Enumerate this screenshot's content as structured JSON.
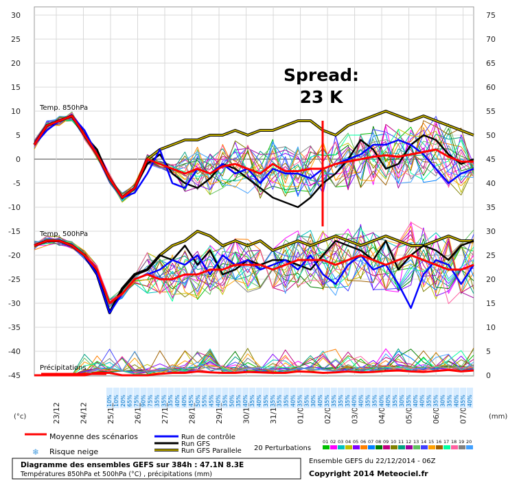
{
  "chart_data": {
    "type": "line",
    "x_dates": [
      "23/12",
      "24/12",
      "25/12",
      "26/12",
      "27/12",
      "28/12",
      "29/12",
      "30/12",
      "31/12",
      "01/01",
      "02/01",
      "03/01",
      "04/01",
      "05/01",
      "06/01",
      "07/01"
    ],
    "y_left": {
      "unit": "(°c)",
      "ticks": [
        30,
        25,
        20,
        15,
        10,
        5,
        0,
        -5,
        -10,
        -15,
        -20,
        -25,
        -30,
        -35,
        -40,
        -45
      ],
      "range": [
        -45,
        30
      ]
    },
    "y_right": {
      "unit": "(mm)",
      "ticks": [
        75,
        70,
        65,
        60,
        55,
        50,
        45,
        40,
        35,
        30,
        25,
        20,
        15,
        10,
        5,
        0
      ],
      "range": [
        0,
        75
      ]
    },
    "panel_labels": {
      "t850": "Temp. 850hPa",
      "t500": "Temp. 500hPa",
      "precip": "Précipitations"
    },
    "annotation": {
      "line1": "Spread:",
      "line2": "23 K",
      "date": "02/01"
    },
    "mean_850": [
      3,
      7,
      8,
      9,
      5,
      1,
      -4,
      -8,
      -6,
      0,
      -1,
      -2,
      -3,
      -2,
      -3,
      -1.5,
      -1,
      -2,
      -3,
      -1,
      -2.5,
      -2.5,
      -2,
      -2,
      -1,
      -0.5,
      0,
      0.5,
      0.8,
      0.5,
      1,
      1.5,
      2,
      0.5,
      -0.5,
      -0.5
    ],
    "control_850": [
      3,
      6,
      8,
      9,
      6,
      1,
      -4,
      -8,
      -7,
      -3,
      2,
      -5,
      -6,
      -2,
      -3,
      -1,
      -3,
      -2,
      -5,
      -2,
      -3,
      -3,
      -4,
      -2,
      -1,
      0,
      1,
      3,
      3,
      4,
      3,
      1,
      -2,
      -5,
      -3,
      -2
    ],
    "gfs_850": [
      3,
      7,
      8,
      9,
      5,
      2,
      -4,
      -8,
      -6,
      -1,
      1,
      -3,
      -5,
      -6,
      -4,
      -1,
      -2,
      -4,
      -6,
      -8,
      -9,
      -10,
      -8,
      -5,
      -3,
      0,
      4,
      2,
      -2,
      -1,
      3,
      5,
      4,
      1,
      -1,
      0
    ],
    "para_850": [
      3,
      7,
      8,
      9,
      5,
      1,
      -4,
      -8,
      -6,
      0,
      2,
      3,
      4,
      4,
      5,
      5,
      6,
      5,
      6,
      6,
      7,
      8,
      8,
      6,
      5,
      7,
      8,
      9,
      10,
      9,
      8,
      9,
      8,
      7,
      6,
      5
    ],
    "mean_500": [
      -18,
      -17,
      -17,
      -18,
      -20,
      -23,
      -30,
      -28,
      -25,
      -24,
      -25,
      -25,
      -24,
      -24,
      -23,
      -23,
      -22,
      -22,
      -22,
      -23,
      -22,
      -21,
      -21,
      -21,
      -22,
      -21,
      -20,
      -21,
      -22,
      -21,
      -20,
      -21,
      -22,
      -23,
      -23,
      -22
    ],
    "control_500": [
      -18,
      -17,
      -17,
      -18,
      -20,
      -24,
      -32,
      -28,
      -25,
      -24,
      -23,
      -21,
      -22,
      -20,
      -24,
      -20,
      -22,
      -21,
      -23,
      -22,
      -21,
      -23,
      -20,
      -24,
      -26,
      -22,
      -20,
      -23,
      -22,
      -26,
      -31,
      -24,
      -21,
      -22,
      -26,
      -22
    ],
    "gfs_500": [
      -18,
      -17,
      -17,
      -18,
      -20,
      -24,
      -32,
      -27,
      -24,
      -23,
      -20,
      -21,
      -18,
      -22,
      -19,
      -24,
      -23,
      -21,
      -22,
      -21,
      -21,
      -22,
      -23,
      -20,
      -17,
      -18,
      -19,
      -21,
      -17,
      -23,
      -20,
      -18,
      -19,
      -21,
      -18,
      -17
    ],
    "para_500": [
      -18,
      -17,
      -17,
      -18,
      -20,
      -24,
      -32,
      -27,
      -24,
      -23,
      -20,
      -18,
      -17,
      -15,
      -16,
      -18,
      -17,
      -18,
      -17,
      -19,
      -18,
      -17,
      -18,
      -17,
      -16,
      -17,
      -18,
      -17,
      -16,
      -17,
      -18,
      -18,
      -17,
      -16,
      -17,
      -17
    ],
    "mean_precip": [
      0,
      0,
      0,
      0,
      0,
      0.5,
      0.5,
      0,
      0,
      0,
      0.3,
      0.5,
      0.5,
      0.8,
      0.6,
      0.5,
      0.5,
      0.7,
      0.6,
      0.5,
      0.5,
      0.8,
      0.7,
      0.5,
      0.6,
      0.8,
      0.6,
      0.7,
      0.9,
      1,
      0.8,
      0.7,
      0.9,
      1.1,
      0.8,
      1
    ],
    "snow_risk_pct": [
      "10%",
      "10%",
      "20%",
      "65%",
      "75%",
      "90%",
      "75%",
      "35%",
      "35%",
      "35%",
      "40%",
      "40%",
      "45%",
      "50%",
      "55%",
      "45%",
      "40%",
      "35%",
      "50%",
      "35%",
      "40%",
      "35%",
      "40%",
      "35%",
      "35%",
      "35%",
      "35%",
      "40%",
      "35%",
      "35%",
      "30%",
      "40%",
      "35%",
      "35%",
      "35%",
      "35%",
      "40%",
      "40%",
      "35%",
      "35%",
      "40%",
      "40%",
      "35%",
      "30%",
      "35%",
      "40%",
      "40%",
      "35%",
      "35%",
      "30%",
      "35%",
      "40%",
      "35%",
      "40%"
    ],
    "perturbation_labels": [
      "01",
      "02",
      "03",
      "04",
      "05",
      "06",
      "07",
      "08",
      "09",
      "10",
      "11",
      "12",
      "13",
      "14",
      "15",
      "16",
      "17",
      "18",
      "19",
      "20"
    ]
  },
  "legend": {
    "mean": "Moyenne des scénarios",
    "snow": "Risque neige",
    "control": "Run de contrôle",
    "gfs": "Run GFS",
    "gfs_para": "Run GFS Parallele",
    "perturbations": "20 Perturbations"
  },
  "footer": {
    "title": "Diagramme des ensembles GEFS sur 384h : 47.1N 8.3E",
    "subtitle": "Températures 850hPa et 500hPa (°C) , précipitations (mm)",
    "run_info": "Ensemble GEFS du 22/12/2014 - 06Z",
    "copyright": "Copyright 2014 Meteociel.fr"
  },
  "colors": {
    "mean": "#ff0000",
    "control": "#0000ff",
    "gfs": "#000000",
    "para": "#c8b400",
    "perturbations": [
      "#00c000",
      "#ff00ff",
      "#00c0c0",
      "#c0c000",
      "#8000ff",
      "#ff8000",
      "#0080ff",
      "#008000",
      "#c00080",
      "#808000",
      "#00a080",
      "#a000a0",
      "#60c060",
      "#4040ff",
      "#ffa000",
      "#a06000",
      "#00ffa0",
      "#ff60a0",
      "#808080",
      "#40a0ff"
    ]
  }
}
